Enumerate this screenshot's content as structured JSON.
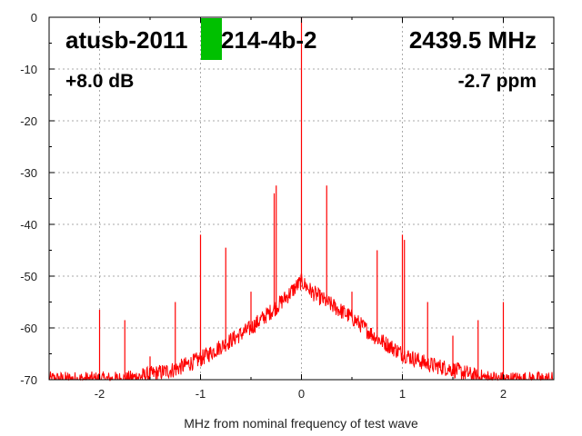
{
  "chart_data": {
    "type": "line",
    "title_left": "atusb-2011",
    "title_left_cont": "214-4b-2",
    "title_right": "2439.5 MHz",
    "gain_text": "+8.0 dB",
    "ppm_text": "-2.7 ppm",
    "xlabel": "MHz from nominal frequency of test wave",
    "ylabel": "",
    "xlim": [
      -2.5,
      2.5
    ],
    "ylim": [
      -70,
      0
    ],
    "xticks": [
      -2,
      -1,
      0,
      1,
      2
    ],
    "xtick_labels": [
      "-2",
      "-1",
      "0",
      "1",
      "2"
    ],
    "yticks": [
      0,
      -10,
      -20,
      -30,
      -40,
      -50,
      -60,
      -70
    ],
    "ytick_labels": [
      "0",
      "-10",
      "-20",
      "-30",
      "-40",
      "-50",
      "-60",
      "-70"
    ],
    "grid": true,
    "series_color": "#ff0000",
    "marker_color": "#00c000",
    "noise_floor": {
      "x": [
        -2.5,
        -2.0,
        -1.75,
        -1.5,
        -1.25,
        -1.0,
        -0.75,
        -0.5,
        -0.25,
        -0.1,
        0.0,
        0.1,
        0.25,
        0.5,
        0.75,
        1.0,
        1.25,
        1.5,
        1.75,
        2.0,
        2.25,
        2.5
      ],
      "y": [
        -70,
        -70,
        -70,
        -69,
        -68,
        -66,
        -63,
        -60,
        -56,
        -53,
        -51,
        -53,
        -55,
        -58,
        -62,
        -65,
        -67,
        -68,
        -69.5,
        -70,
        -70,
        -70
      ]
    },
    "spurs": [
      {
        "x": -2.0,
        "y": -56.5
      },
      {
        "x": -1.75,
        "y": -58.5
      },
      {
        "x": -1.5,
        "y": -65.5
      },
      {
        "x": -1.25,
        "y": -55
      },
      {
        "x": -1.0,
        "y": -42
      },
      {
        "x": -0.75,
        "y": -44.5
      },
      {
        "x": -0.5,
        "y": -53
      },
      {
        "x": -0.25,
        "y": -32.5
      },
      {
        "x": -0.27,
        "y": -34
      },
      {
        "x": 0.0,
        "y": 0
      },
      {
        "x": 0.25,
        "y": -32.5
      },
      {
        "x": 0.5,
        "y": -53
      },
      {
        "x": 0.75,
        "y": -45
      },
      {
        "x": 1.0,
        "y": -42
      },
      {
        "x": 1.02,
        "y": -43
      },
      {
        "x": 1.25,
        "y": -55
      },
      {
        "x": 1.5,
        "y": -61.5
      },
      {
        "x": 1.75,
        "y": -58.5
      },
      {
        "x": 2.0,
        "y": -55
      }
    ]
  }
}
